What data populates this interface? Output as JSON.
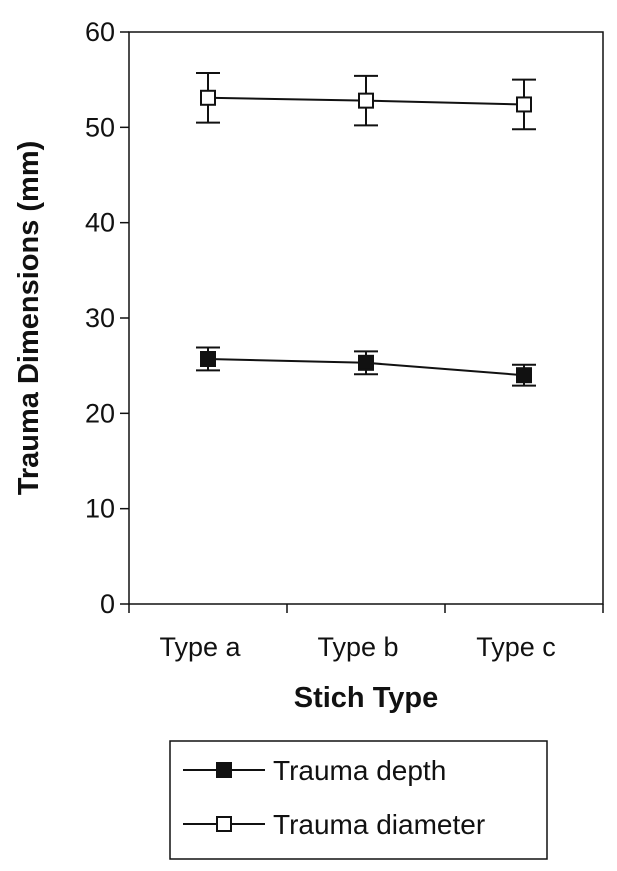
{
  "chart_data": {
    "type": "line",
    "categories": [
      "Type a",
      "Type b",
      "Type c"
    ],
    "xlabel": "Stich Type",
    "ylabel": "Trauma Dimensions (mm)",
    "ylim": [
      0,
      60
    ],
    "yticks": [
      0,
      10,
      20,
      30,
      40,
      50,
      60
    ],
    "grid": false,
    "legend_position": "bottom",
    "series": [
      {
        "name": "Trauma depth",
        "marker": "filled-square",
        "color": "#111111",
        "values": [
          25.7,
          25.3,
          24.0
        ],
        "error": [
          1.2,
          1.2,
          1.1
        ]
      },
      {
        "name": "Trauma diameter",
        "marker": "open-square",
        "color": "#111111",
        "values": [
          53.1,
          52.8,
          52.4
        ],
        "error": [
          2.6,
          2.6,
          2.6
        ]
      }
    ]
  }
}
